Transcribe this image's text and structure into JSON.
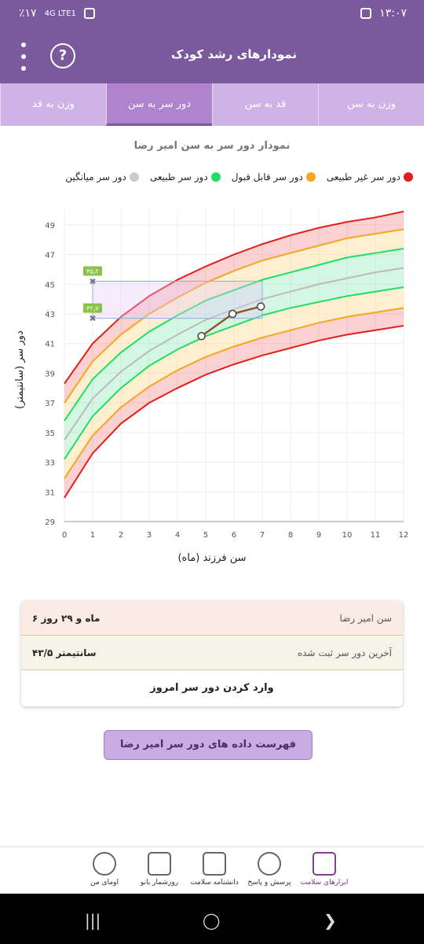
{
  "statusbar": {
    "battery": "٪۱۷",
    "network": "4G LTE1",
    "time": "۱۳:۰۷"
  },
  "header": {
    "title": "نمودارهای رشد کودک",
    "help_icon": "help-circle-icon",
    "menu_icon": "more-vertical-icon"
  },
  "tabs": [
    {
      "label": "وزن به سن",
      "active": false
    },
    {
      "label": "قد به سن",
      "active": false
    },
    {
      "label": "دور سر به سن",
      "active": true
    },
    {
      "label": "وزن به قد",
      "active": false
    }
  ],
  "legend": [
    {
      "label": "دور سر غیر طبیعی",
      "color": "#e0201c"
    },
    {
      "label": "دور سر قابل قبول",
      "color": "#f5a623"
    },
    {
      "label": "دور سر طبیعی",
      "color": "#22dd66"
    },
    {
      "label": "دور سر میانگین",
      "color": "#cccccc"
    }
  ],
  "chart_data": {
    "type": "line",
    "title": "نمودار دور سر به سن امیر رضا",
    "xlabel": "سن فرزند (ماه)",
    "ylabel": "دور سر (سانتیمتر)",
    "xlim": [
      0,
      12
    ],
    "ylim": [
      29,
      50
    ],
    "xticks": [
      "0",
      "1",
      "2",
      "3",
      "4",
      "5",
      "6",
      "7",
      "8",
      "9",
      "10",
      "11",
      "12"
    ],
    "yticks": [
      "29",
      "31",
      "33",
      "35",
      "37",
      "39",
      "41",
      "43",
      "45",
      "47",
      "49"
    ],
    "x": [
      0,
      1,
      2,
      3,
      4,
      5,
      6,
      7,
      8,
      9,
      10,
      11,
      12
    ],
    "series": [
      {
        "key": "p_low_abn",
        "values": [
          30.6,
          33.6,
          35.6,
          37.0,
          38.0,
          38.9,
          39.6,
          40.2,
          40.7,
          41.2,
          41.6,
          41.9,
          42.2
        ],
        "color": "#e0201c"
      },
      {
        "key": "p_low_acc",
        "values": [
          31.9,
          34.8,
          36.7,
          38.1,
          39.2,
          40.1,
          40.8,
          41.4,
          41.9,
          42.4,
          42.8,
          43.1,
          43.4
        ],
        "color": "#f5a623"
      },
      {
        "key": "p_low_nor",
        "values": [
          33.2,
          36.1,
          38.0,
          39.5,
          40.6,
          41.5,
          42.2,
          42.9,
          43.4,
          43.8,
          44.2,
          44.5,
          44.8
        ],
        "color": "#22dd66"
      },
      {
        "key": "p_mean",
        "values": [
          34.5,
          37.3,
          39.1,
          40.5,
          41.6,
          42.6,
          43.3,
          44.0,
          44.5,
          45.0,
          45.4,
          45.8,
          46.1
        ],
        "color": "#bbbbbb"
      },
      {
        "key": "p_up_nor",
        "values": [
          35.8,
          38.6,
          40.4,
          41.8,
          42.9,
          43.9,
          44.6,
          45.3,
          45.8,
          46.3,
          46.8,
          47.1,
          47.4
        ],
        "color": "#22dd66"
      },
      {
        "key": "p_up_acc",
        "values": [
          37.0,
          39.8,
          41.6,
          43.0,
          44.1,
          45.1,
          45.9,
          46.6,
          47.1,
          47.6,
          48.1,
          48.4,
          48.7
        ],
        "color": "#f5a623"
      },
      {
        "key": "p_up_abn",
        "values": [
          38.3,
          41.0,
          42.8,
          44.2,
          45.3,
          46.2,
          47.0,
          47.7,
          48.3,
          48.8,
          49.2,
          49.5,
          49.9
        ],
        "color": "#e0201c"
      }
    ],
    "child": {
      "x": [
        4.85,
        5.95,
        6.95
      ],
      "y": [
        41.5,
        43.0,
        43.5
      ],
      "color": "#8b5a2b"
    },
    "normal_range_marker": {
      "x": 1,
      "low": 42.7,
      "high": 45.2,
      "low_label": "۴۲٫۷",
      "high_label": "۴۵٫۲",
      "right_x": 7
    }
  },
  "info": {
    "age_label": "سن امیر رضا",
    "age_value": "۶ ماه و ۲۹ روز",
    "last_label": "آخرین دور سر ثبت شده",
    "last_value": "۴۳/۵ سانتیمتر",
    "enter_label": "وارد کردن دور سر امروز"
  },
  "list_button": "فهرست داده های دور سر امیر رضا",
  "bottomnav": [
    {
      "label": "ابزارهای سلامت",
      "icon": "medical-kit-icon",
      "active": true
    },
    {
      "label": "پرسش و پاسخ",
      "icon": "question-bubble-icon",
      "active": false
    },
    {
      "label": "دانشنامه سلامت",
      "icon": "book-icon",
      "active": false
    },
    {
      "label": "روزشمار بانو",
      "icon": "calendar-icon",
      "active": false
    },
    {
      "label": "اومای من",
      "icon": "user-icon",
      "active": false
    }
  ]
}
